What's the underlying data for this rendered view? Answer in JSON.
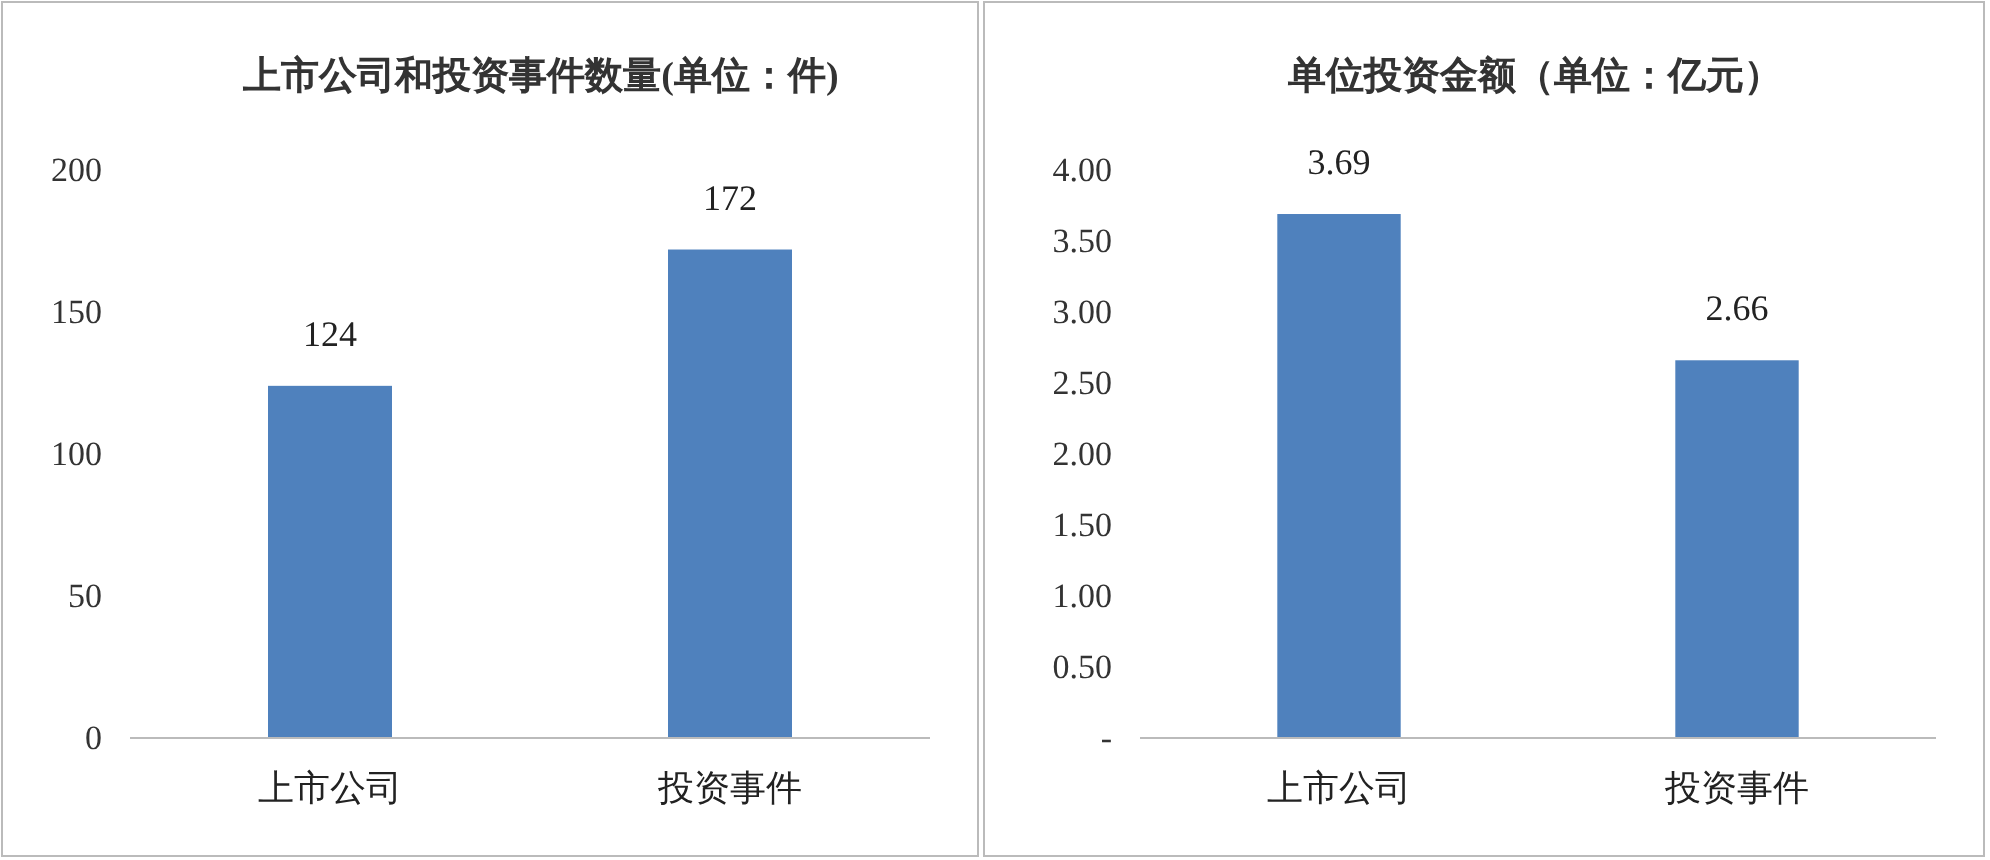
{
  "chart_data": [
    {
      "type": "bar",
      "title": "上市公司和投资事件数量(单位：件)",
      "categories": [
        "上市公司",
        "投资事件"
      ],
      "values": [
        124,
        172
      ],
      "color": "#4f81bd",
      "ylim": [
        0,
        200
      ],
      "yticks": [
        0,
        50,
        100,
        150,
        200
      ],
      "data_labels": true,
      "grid": false
    },
    {
      "type": "bar",
      "title": "单位投资金额（单位：亿元）",
      "categories": [
        "上市公司",
        "投资事件"
      ],
      "values": [
        3.69,
        2.66
      ],
      "color": "#4f81bd",
      "ylim": [
        0,
        4
      ],
      "yticks": [
        {
          "value": 0,
          "label": "-"
        },
        {
          "value": 0.5,
          "label": "0.50"
        },
        {
          "value": 1,
          "label": "1.00"
        },
        {
          "value": 1.5,
          "label": "1.50"
        },
        {
          "value": 2,
          "label": "2.00"
        },
        {
          "value": 2.5,
          "label": "2.50"
        },
        {
          "value": 3,
          "label": "3.00"
        },
        {
          "value": 3.5,
          "label": "3.50"
        },
        {
          "value": 4,
          "label": "4.00"
        }
      ],
      "data_labels": true,
      "grid": false
    }
  ]
}
